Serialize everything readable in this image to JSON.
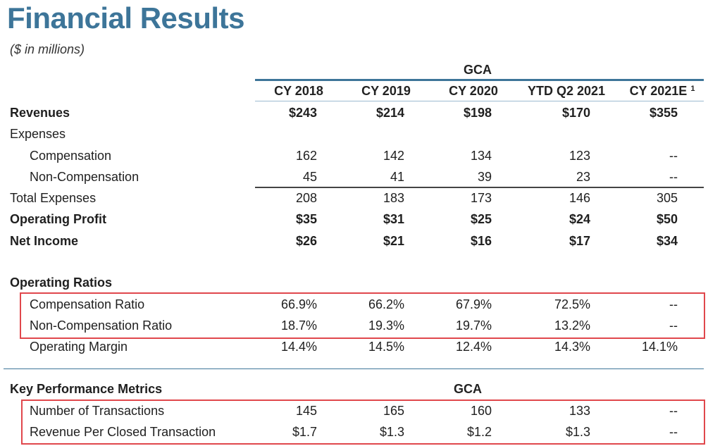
{
  "title": "Financial Results",
  "subtitle": "($ in millions)",
  "group_label": "GCA",
  "columns": [
    "CY 2018",
    "CY 2019",
    "CY 2020",
    "YTD Q2 2021",
    "CY 2021E"
  ],
  "footnote_marker": "1",
  "rows": [
    {
      "label": "Revenues",
      "values": [
        "$243",
        "$214",
        "$198",
        "$170",
        "$355"
      ]
    },
    {
      "label": "Expenses",
      "values": [
        "",
        "",
        "",
        "",
        ""
      ]
    },
    {
      "label": "Compensation",
      "values": [
        "162",
        "142",
        "134",
        "123",
        "--"
      ]
    },
    {
      "label": "Non-Compensation",
      "values": [
        "45",
        "41",
        "39",
        "23",
        "--"
      ]
    },
    {
      "label": "Total Expenses",
      "values": [
        "208",
        "183",
        "173",
        "146",
        "305"
      ]
    },
    {
      "label": "Operating Profit",
      "values": [
        "$35",
        "$31",
        "$25",
        "$24",
        "$50"
      ]
    },
    {
      "label": "Net Income",
      "values": [
        "$26",
        "$21",
        "$16",
        "$17",
        "$34"
      ]
    }
  ],
  "ratios": {
    "heading": "Operating Ratios",
    "rows": [
      {
        "label": "Compensation Ratio",
        "values": [
          "66.9%",
          "66.2%",
          "67.9%",
          "72.5%",
          "--"
        ]
      },
      {
        "label": "Non-Compensation Ratio",
        "values": [
          "18.7%",
          "19.3%",
          "19.7%",
          "13.2%",
          "--"
        ]
      },
      {
        "label": "Operating Margin",
        "values": [
          "14.4%",
          "14.5%",
          "12.4%",
          "14.3%",
          "14.1%"
        ]
      }
    ]
  },
  "kpi": {
    "heading": "Key Performance Metrics",
    "group_label": "GCA",
    "rows": [
      {
        "label": "Number of Transactions",
        "values": [
          "145",
          "165",
          "160",
          "133",
          "--"
        ]
      },
      {
        "label": "Revenue Per Closed Transaction",
        "values": [
          "$1.7",
          "$1.3",
          "$1.2",
          "$1.3",
          "--"
        ]
      }
    ]
  },
  "colors": {
    "title": "#3d7599",
    "highlight": "#e0474c"
  }
}
